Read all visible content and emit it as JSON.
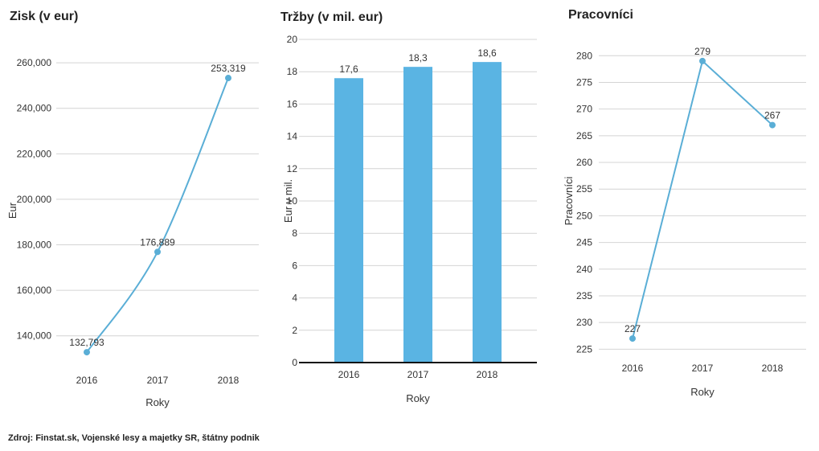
{
  "source": "Zdroj: Finstat.sk, Vojenské lesy a majetky SR, štátny podnik",
  "chart_data": [
    {
      "type": "line",
      "title": "Zisk (v eur)",
      "xlabel": "Roky",
      "ylabel": "Eur",
      "categories": [
        "2016",
        "2017",
        "2018"
      ],
      "values": [
        132793,
        176889,
        253319
      ],
      "data_labels": [
        "132,793",
        "176,889",
        "253,319"
      ],
      "yticks": [
        "140,000",
        "160,000",
        "180,000",
        "200,000",
        "220,000",
        "240,000",
        "260,000"
      ],
      "ylim": [
        130000,
        265000
      ],
      "smooth": true,
      "color": "#5aaed6",
      "grid": true,
      "legend": "none"
    },
    {
      "type": "bar",
      "title": "Tržby (v mil. eur)",
      "xlabel": "Roky",
      "ylabel": "Eur v mil.",
      "categories": [
        "2016",
        "2017",
        "2018"
      ],
      "values": [
        17.6,
        18.3,
        18.6
      ],
      "data_labels": [
        "17,6",
        "18,3",
        "18,6"
      ],
      "yticks": [
        "0",
        "2",
        "4",
        "6",
        "8",
        "10",
        "12",
        "14",
        "16",
        "18",
        "20"
      ],
      "ylim": [
        0,
        20
      ],
      "color": "#5ab4e3",
      "grid": true,
      "legend": "none"
    },
    {
      "type": "line",
      "title": "Pracovníci",
      "xlabel": "Roky",
      "ylabel": "Pracovníci",
      "categories": [
        "2016",
        "2017",
        "2018"
      ],
      "values": [
        227,
        279,
        267
      ],
      "data_labels": [
        "227",
        "279",
        "267"
      ],
      "yticks": [
        "225",
        "230",
        "235",
        "240",
        "245",
        "250",
        "255",
        "260",
        "265",
        "270",
        "275",
        "280"
      ],
      "ylim": [
        224,
        282
      ],
      "smooth": false,
      "color": "#5aaed6",
      "grid": true,
      "legend": "none"
    }
  ]
}
